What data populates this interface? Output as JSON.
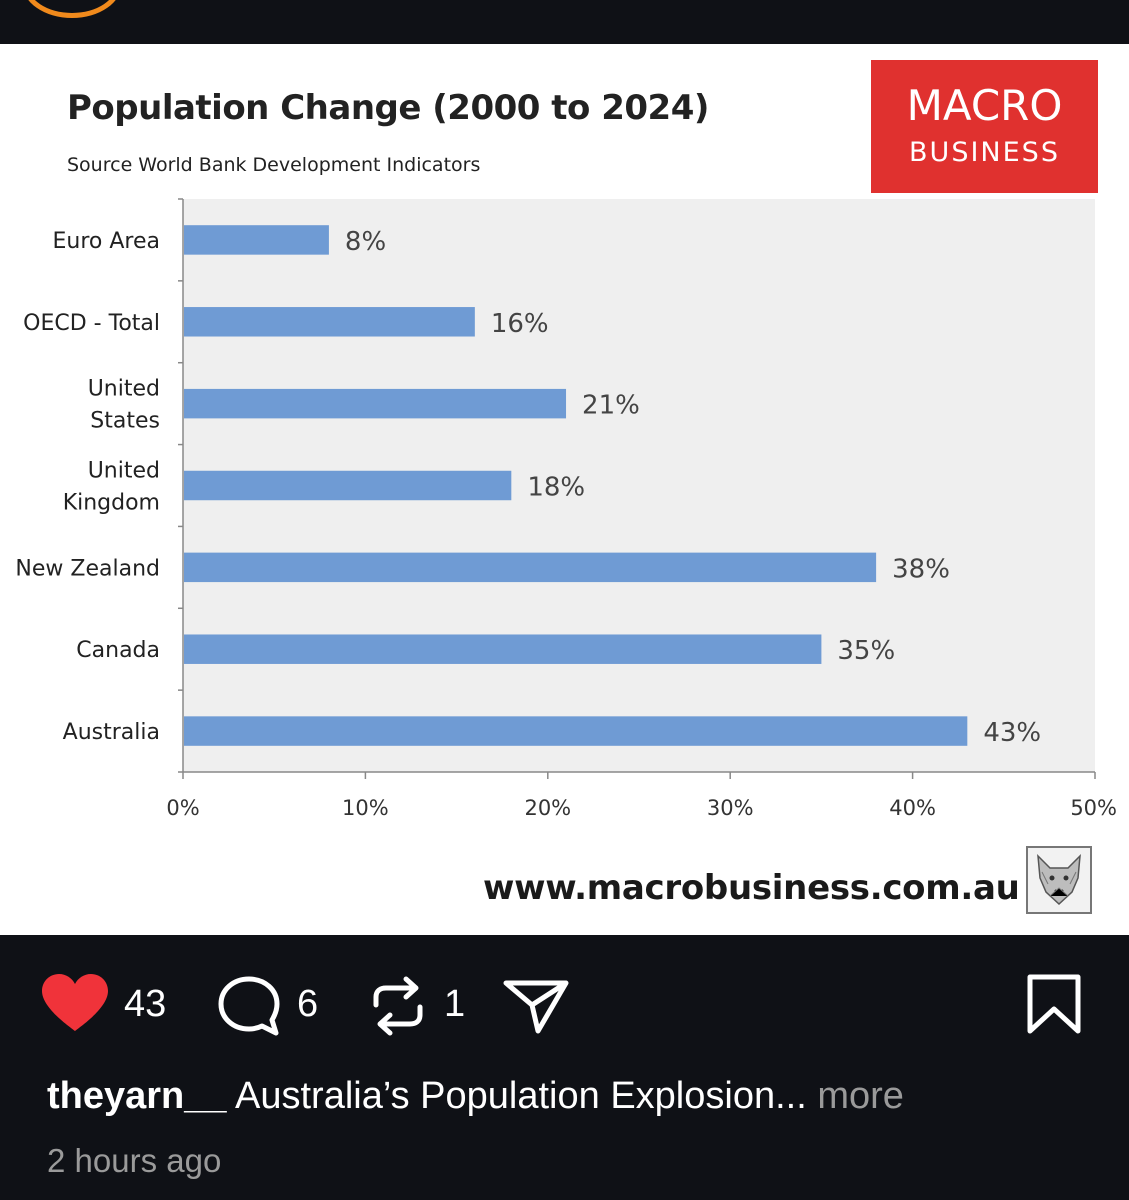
{
  "post": {
    "likes": "43",
    "comments": "6",
    "reposts": "1",
    "username": "theyarn__",
    "caption": "Australia’s Population Explosion...",
    "more_label": "more",
    "timestamp": "2 hours ago"
  },
  "logo": {
    "line1": "MACRO",
    "line2": "BUSINESS"
  },
  "website": "www.macrobusiness.com.au",
  "colors": {
    "bar": "#6f9bd4",
    "logo_bg": "#e0312f",
    "like": "#f0333a",
    "background": "#0f1116"
  },
  "chart_data": {
    "type": "bar",
    "orientation": "horizontal",
    "title": "Population Change (2000 to 2024)",
    "subtitle": "Source World Bank Development Indicators",
    "categories": [
      [
        "Euro Area"
      ],
      [
        "OECD - Total"
      ],
      [
        "United",
        "States"
      ],
      [
        "United",
        "Kingdom"
      ],
      [
        "New Zealand"
      ],
      [
        "Canada"
      ],
      [
        "Australia"
      ]
    ],
    "values": [
      8,
      16,
      21,
      18,
      38,
      35,
      43
    ],
    "data_labels": [
      "8%",
      "16%",
      "21%",
      "18%",
      "38%",
      "35%",
      "43%"
    ],
    "xlim": [
      0,
      50
    ],
    "xticks": [
      0,
      10,
      20,
      30,
      40,
      50
    ],
    "xtick_labels": [
      "0%",
      "10%",
      "20%",
      "30%",
      "40%",
      "50%"
    ],
    "grid": false
  }
}
